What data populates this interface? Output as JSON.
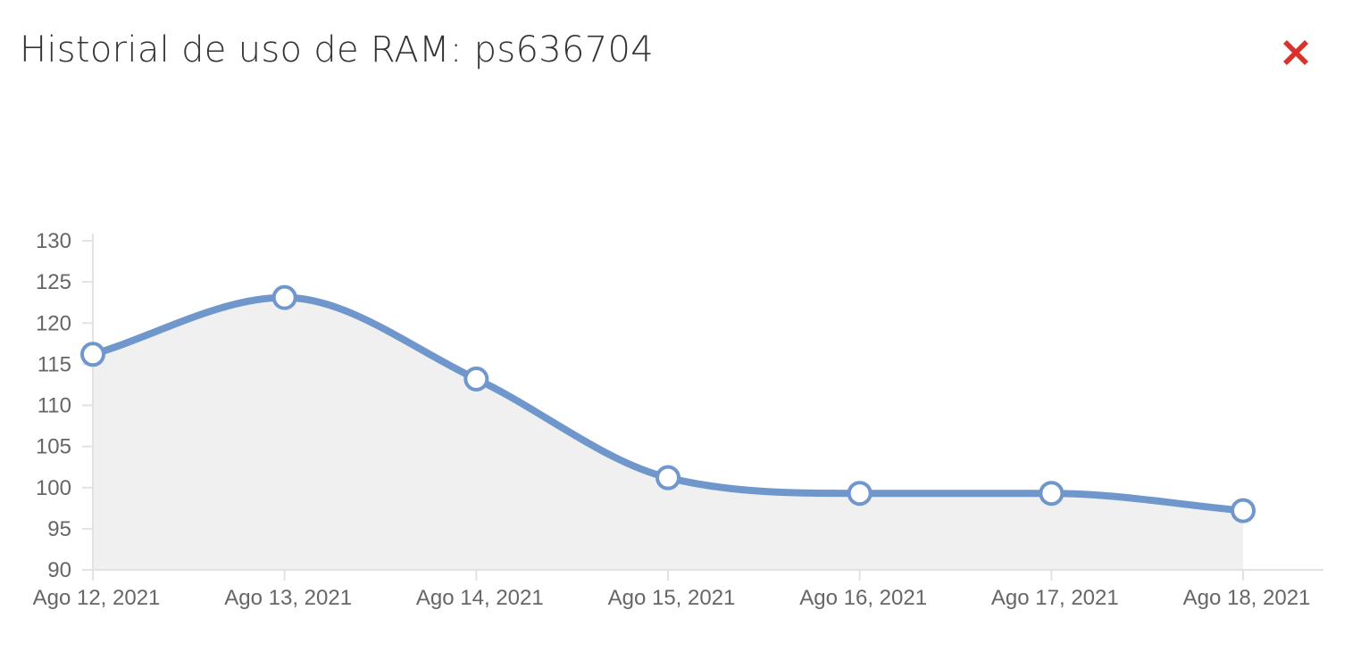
{
  "modal": {
    "title": "Historial de uso de RAM: ps636704",
    "close_icon": "close-x-icon",
    "close_color": "#d9312b"
  },
  "chart_data": {
    "type": "area",
    "title": "",
    "xlabel": "",
    "ylabel": "",
    "categories": [
      "Ago 12, 2021",
      "Ago 13, 2021",
      "Ago 14, 2021",
      "Ago 15, 2021",
      "Ago 16, 2021",
      "Ago 17, 2021",
      "Ago 18, 2021"
    ],
    "series": [
      {
        "values": [
          116.2,
          123.1,
          113.2,
          101.2,
          99.3,
          99.3,
          97.2
        ]
      }
    ],
    "ylim": [
      90,
      130
    ],
    "yticks": [
      90,
      95,
      100,
      105,
      110,
      115,
      120,
      125,
      130
    ],
    "grid": false,
    "legend": "none",
    "line_color": "#6f97cc",
    "fill_color": "#f0f0f0",
    "point_fill": "#ffffff"
  }
}
